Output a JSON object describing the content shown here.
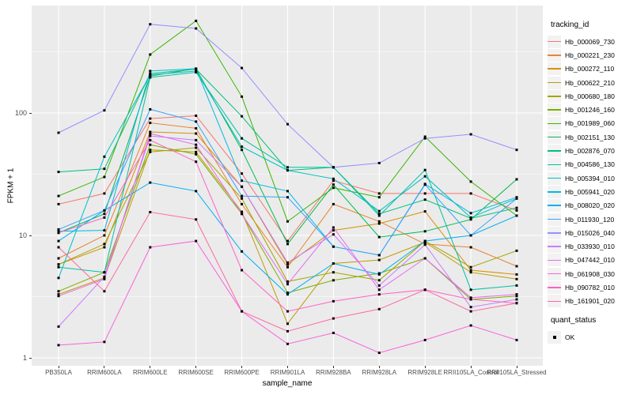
{
  "chart_data": {
    "type": "line",
    "title": "",
    "xlabel": "sample_name",
    "ylabel": "FPKM + 1",
    "y_scale": "log10",
    "ylim": [
      1,
      750
    ],
    "y_ticks": [
      1,
      10,
      100
    ],
    "y_minor_ticks": [
      3.1623,
      31.623,
      316.23
    ],
    "grid": "on",
    "legend_position": "right",
    "point_marker": {
      "shape": "square",
      "color": "#000000",
      "legend_label": "OK"
    },
    "x_categories": [
      "PB350LA",
      "RRIM600LA",
      "RRIM600LE",
      "RRIM600SE",
      "RRIM600PE",
      "RRIM901LA",
      "RRIM928BA",
      "RRIM928LA",
      "RRIM928LE",
      "RRII105LA_Control",
      "RRII105LA_Stressed"
    ],
    "series": [
      {
        "name": "Hb_000069_730",
        "color": "#F8766D",
        "values": [
          18,
          22,
          90,
          95,
          32,
          9,
          28,
          22,
          22,
          22,
          16
        ]
      },
      {
        "name": "Hb_000221_230",
        "color": "#EA8331",
        "values": [
          6.5,
          10,
          83,
          75,
          18,
          5.5,
          18,
          13,
          8.5,
          8,
          5.6
        ]
      },
      {
        "name": "Hb_000272_110",
        "color": "#D89000",
        "values": [
          5.8,
          8,
          70,
          68,
          25,
          5.8,
          11,
          12.5,
          15.7,
          5.2,
          4.8
        ]
      },
      {
        "name": "Hb_000622_210",
        "color": "#C09B00",
        "values": [
          3.3,
          4.5,
          50,
          48,
          15.6,
          1.9,
          5.9,
          6.3,
          8.8,
          5,
          4.4
        ]
      },
      {
        "name": "Hb_000680_180",
        "color": "#A3A500",
        "values": [
          5.8,
          8.5,
          48,
          52,
          20,
          4.2,
          5,
          4.3,
          9,
          5.5,
          7.5
        ]
      },
      {
        "name": "Hb_001246_160",
        "color": "#7CAE00",
        "values": [
          3.5,
          5,
          55,
          46,
          15,
          3.4,
          4.3,
          4.9,
          6.5,
          3,
          3.2
        ]
      },
      {
        "name": "Hb_001989_060",
        "color": "#39B600",
        "values": [
          21,
          30,
          300,
          565,
          136,
          13,
          24.5,
          20.5,
          64,
          27.5,
          14.5
        ]
      },
      {
        "name": "Hb_002151_130",
        "color": "#00BB4E",
        "values": [
          10.5,
          15,
          200,
          230,
          50,
          8.5,
          26,
          9.7,
          10.8,
          13.5,
          28.7
        ]
      },
      {
        "name": "Hb_002876_070",
        "color": "#00BF7D",
        "values": [
          33,
          35,
          210,
          228,
          94,
          34,
          36,
          15,
          19.6,
          13.8,
          16.8
        ]
      },
      {
        "name": "Hb_004586_130",
        "color": "#00C1A3",
        "values": [
          5.5,
          5,
          195,
          215,
          62,
          36,
          36,
          14.5,
          34.2,
          3.6,
          3.9
        ]
      },
      {
        "name": "Hb_005394_010",
        "color": "#00BFC4",
        "values": [
          4.5,
          44,
          205,
          220,
          53,
          34,
          29,
          15.8,
          30.4,
          14,
          20
        ]
      },
      {
        "name": "Hb_005941_020",
        "color": "#00BAE0",
        "values": [
          10.8,
          11,
          220,
          230,
          28,
          23,
          8.1,
          6.9,
          26.3,
          15.2,
          20.5
        ]
      },
      {
        "name": "Hb_008020_020",
        "color": "#00B0F6",
        "values": [
          9,
          16,
          27,
          23,
          7.4,
          3.3,
          5.9,
          4.8,
          9,
          10,
          14.5
        ]
      },
      {
        "name": "Hb_011930_120",
        "color": "#35A2FF",
        "values": [
          11.2,
          16,
          107,
          85,
          21,
          20.5,
          8.1,
          6.9,
          26,
          10,
          20
        ]
      },
      {
        "name": "Hb_015026_040",
        "color": "#9590FF",
        "values": [
          69,
          105,
          530,
          490,
          233,
          81,
          36,
          39,
          62,
          67,
          50
        ]
      },
      {
        "name": "Hb_033930_010",
        "color": "#C77CFF",
        "values": [
          1.8,
          4.6,
          65,
          60,
          25,
          6,
          10.2,
          3.9,
          8.4,
          2.6,
          3
        ]
      },
      {
        "name": "Hb_047442_010",
        "color": "#E76BF3",
        "values": [
          3.2,
          4.4,
          68,
          55,
          15,
          4,
          11.6,
          3.6,
          6.5,
          3.1,
          3.3
        ]
      },
      {
        "name": "Hb_061908_030",
        "color": "#FA62DB",
        "values": [
          1.27,
          1.35,
          8,
          9,
          2.4,
          1.3,
          1.6,
          1.1,
          1.4,
          1.84,
          1.4
        ]
      },
      {
        "name": "Hb_090782_010",
        "color": "#FF61C3",
        "values": [
          10.5,
          14,
          60,
          40,
          5.2,
          2.4,
          2.9,
          3.3,
          3.6,
          3,
          2.8
        ]
      },
      {
        "name": "Hb_161901_020",
        "color": "#FF67A4",
        "values": [
          8,
          3.5,
          15.5,
          13.5,
          2.4,
          1.65,
          2.1,
          2.5,
          3.6,
          2.4,
          2.8
        ]
      }
    ]
  },
  "legend": {
    "tracking_title": "tracking_id",
    "quant_title": "quant_status",
    "quant_items": [
      {
        "label": "OK"
      }
    ]
  },
  "colors": {
    "panel_background": "#EBEBEB",
    "gridline": "#FFFFFF",
    "axis_text": "#4D4D4D",
    "point": "#000000",
    "legend_key_background": "#F2F2F2"
  }
}
